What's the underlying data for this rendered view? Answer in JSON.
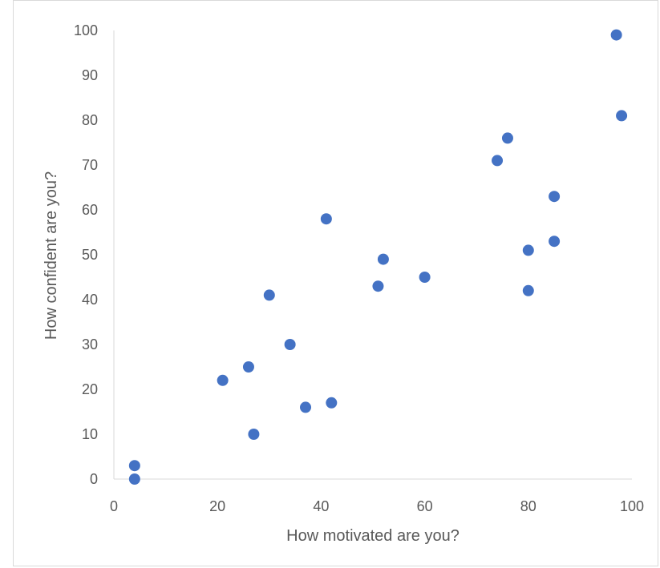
{
  "chart_data": {
    "type": "scatter",
    "title": "",
    "xlabel": "How motivated are you?",
    "ylabel": "How confident are you?",
    "xlim": [
      0,
      100
    ],
    "ylim": [
      0,
      100
    ],
    "x_ticks": [
      "0",
      "20",
      "40",
      "60",
      "80",
      "100"
    ],
    "y_ticks": [
      "0",
      "10",
      "20",
      "30",
      "40",
      "50",
      "60",
      "70",
      "80",
      "90",
      "100"
    ],
    "grid": false,
    "legend": "none",
    "marker_color": "#4472c4",
    "series": [
      {
        "points": [
          {
            "x": 4,
            "y": 3
          },
          {
            "x": 4,
            "y": 0
          },
          {
            "x": 21,
            "y": 22
          },
          {
            "x": 26,
            "y": 25
          },
          {
            "x": 27,
            "y": 10
          },
          {
            "x": 30,
            "y": 41
          },
          {
            "x": 34,
            "y": 30
          },
          {
            "x": 37,
            "y": 16
          },
          {
            "x": 41,
            "y": 58
          },
          {
            "x": 42,
            "y": 17
          },
          {
            "x": 51,
            "y": 43
          },
          {
            "x": 52,
            "y": 49
          },
          {
            "x": 60,
            "y": 45
          },
          {
            "x": 74,
            "y": 71
          },
          {
            "x": 76,
            "y": 76
          },
          {
            "x": 80,
            "y": 51
          },
          {
            "x": 80,
            "y": 42
          },
          {
            "x": 85,
            "y": 63
          },
          {
            "x": 85,
            "y": 53
          },
          {
            "x": 97,
            "y": 99
          },
          {
            "x": 98,
            "y": 81
          }
        ]
      }
    ]
  }
}
